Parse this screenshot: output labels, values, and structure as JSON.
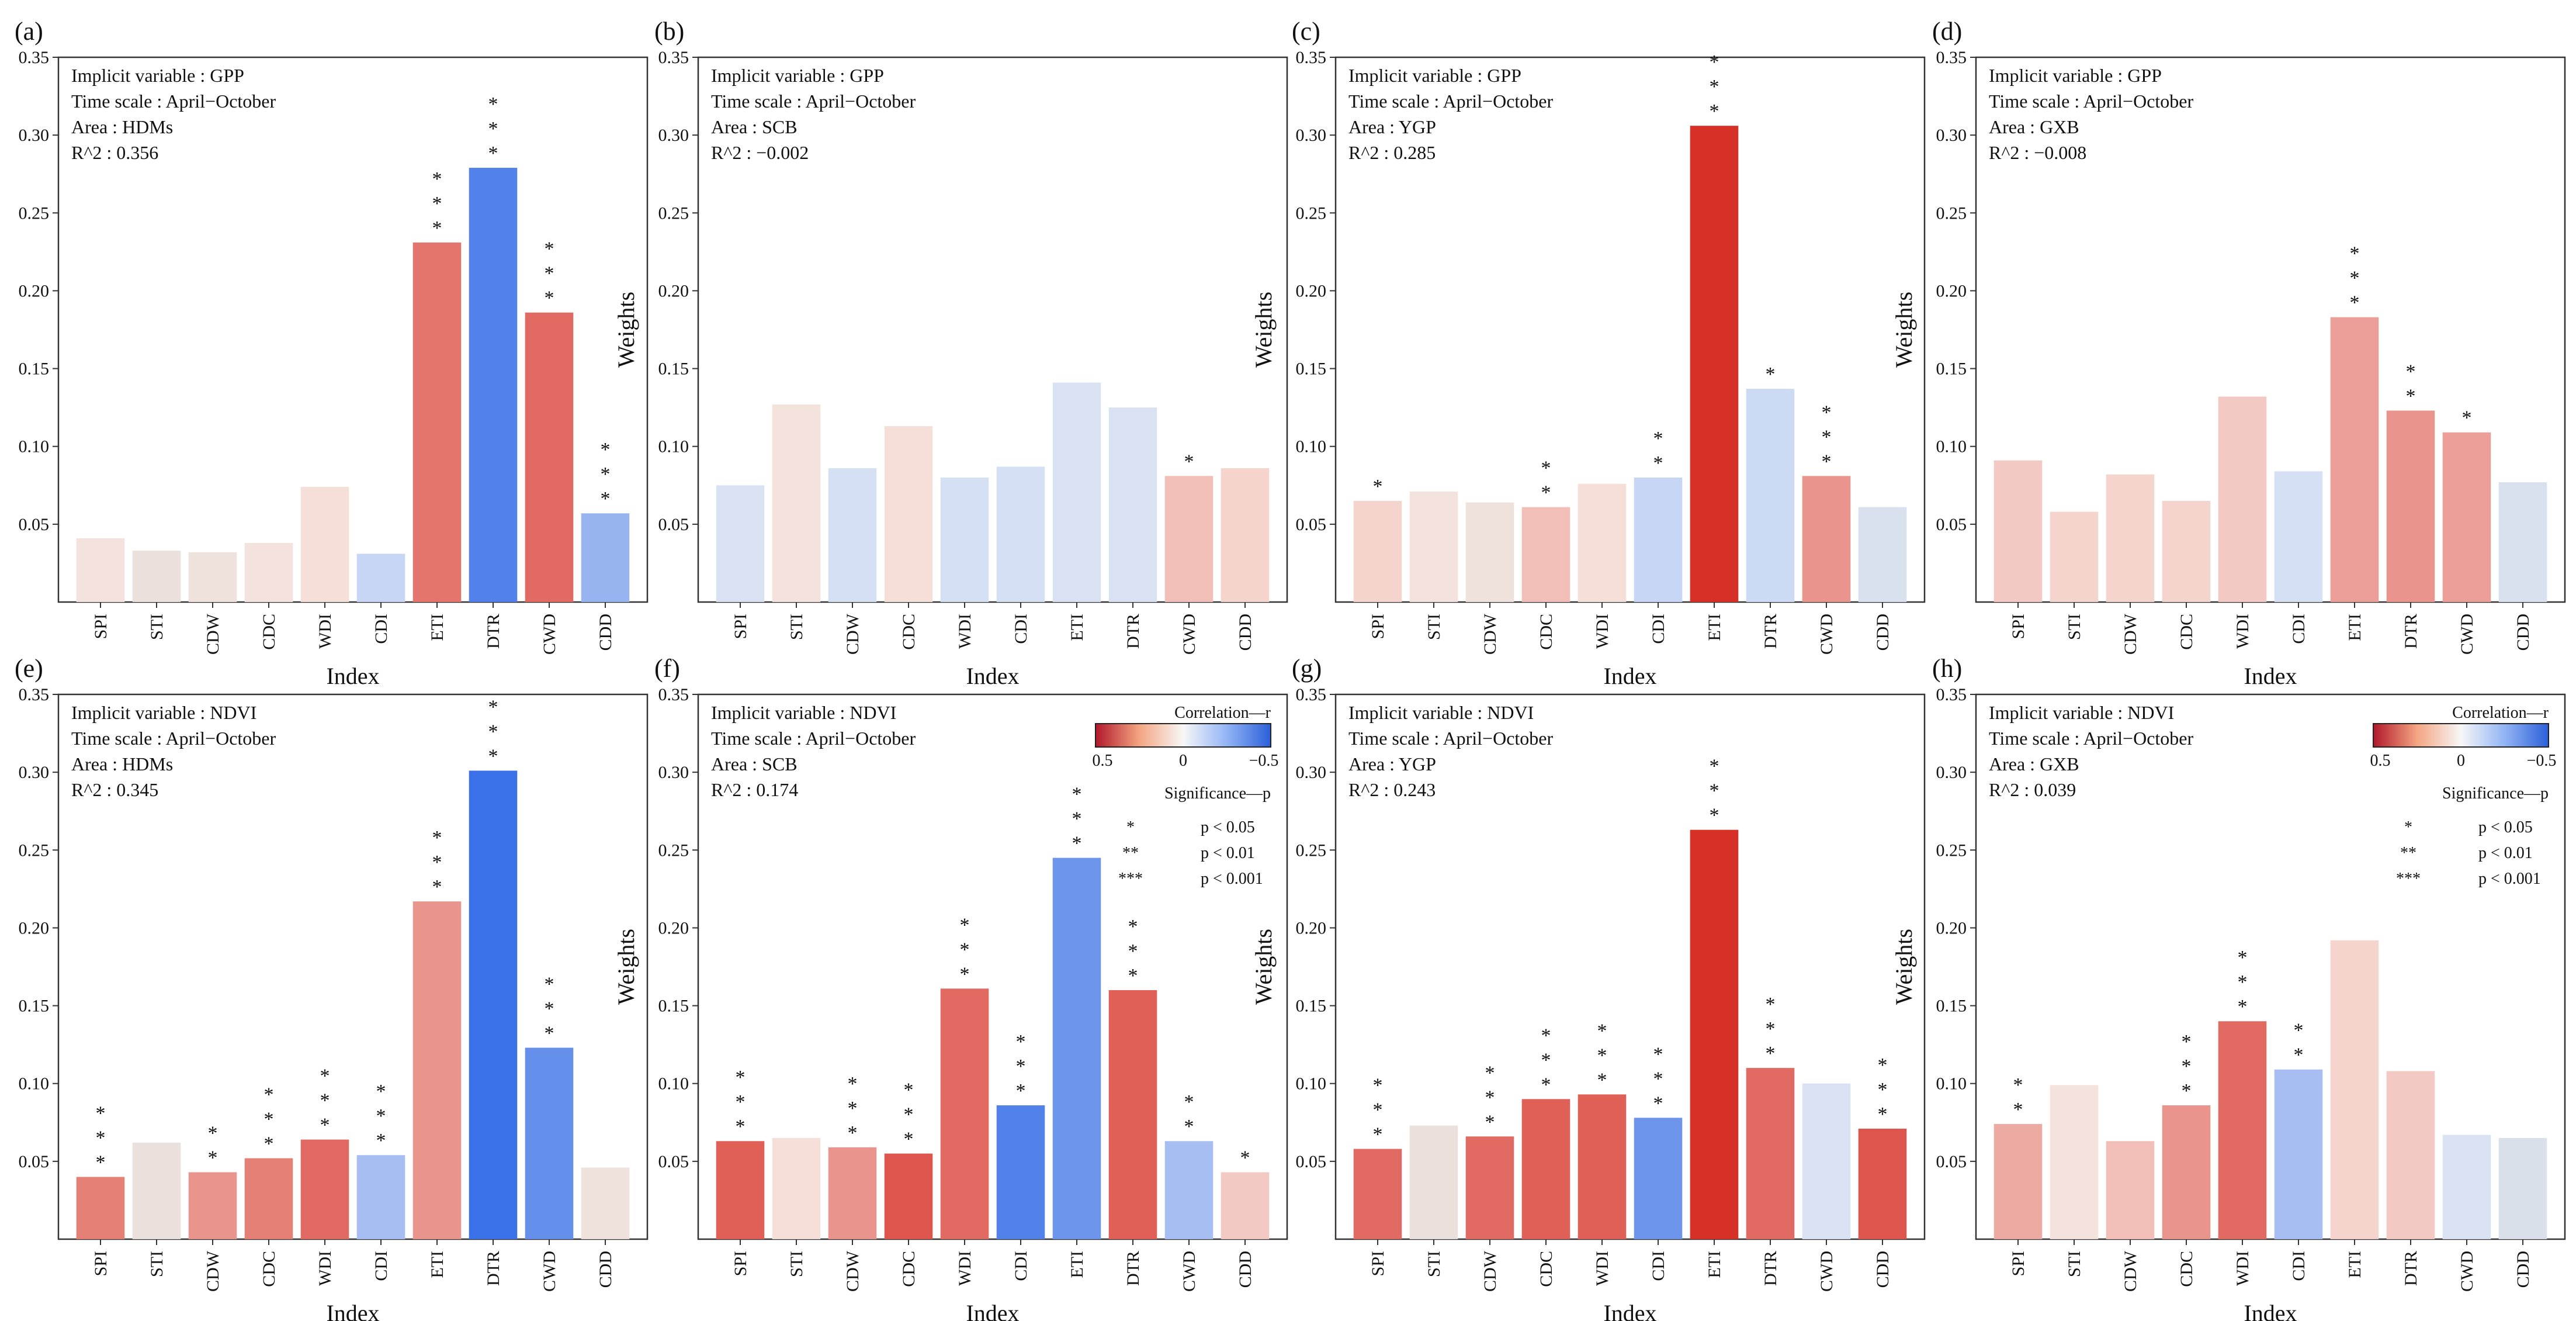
{
  "figure": {
    "ylabel": "Weights",
    "xlabel": "Index",
    "info_keys": {
      "var": "Implicit variable",
      "time": "Time scale",
      "area": "Area",
      "r2": "R^2"
    },
    "legend": {
      "corr_title": "Correlation—r",
      "corr_ticks": [
        "0.5",
        "0",
        "−0.5"
      ],
      "sig_title": "Significance—p",
      "sig_rows": [
        {
          "mark": "*",
          "text": "p < 0.05"
        },
        {
          "mark": "**",
          "text": "p < 0.01"
        },
        {
          "mark": "***",
          "text": "p < 0.001"
        }
      ]
    },
    "colors": {
      "pos_strong": "#d73027",
      "pos_light": "#f7e3dc",
      "neutral": "#dcdcdc",
      "neg_light": "#d9e3f5",
      "neg_strong": "#3a70e8"
    }
  },
  "chart_data": [
    {
      "label": "(a)",
      "type": "bar",
      "var": "GPP",
      "time": "April−October",
      "area": "HDMs",
      "r2": "0.356",
      "ylim": [
        0,
        0.35
      ],
      "yticks": [
        "0.05",
        "0.10",
        "0.15",
        "0.20",
        "0.25",
        "0.30",
        "0.35"
      ],
      "categories": [
        "SPI",
        "STI",
        "CDW",
        "CDC",
        "WDI",
        "CDI",
        "ETI",
        "DTR",
        "CWD",
        "CDD"
      ],
      "values": [
        0.041,
        0.033,
        0.032,
        0.038,
        0.074,
        0.031,
        0.231,
        0.279,
        0.186,
        0.057
      ],
      "r": [
        0.1,
        0.06,
        0.08,
        0.1,
        0.12,
        -0.15,
        0.32,
        -0.4,
        0.34,
        -0.25
      ],
      "sig": [
        "",
        "",
        "",
        "",
        "",
        "",
        "***",
        "***",
        "***",
        "***"
      ],
      "legend": false
    },
    {
      "label": "(b)",
      "type": "bar",
      "var": "GPP",
      "time": "April−October",
      "area": "SCB",
      "r2": "−0.002",
      "ylim": [
        0,
        0.35
      ],
      "yticks": [
        "0.05",
        "0.10",
        "0.15",
        "0.20",
        "0.25",
        "0.30",
        "0.35"
      ],
      "categories": [
        "SPI",
        "STI",
        "CDW",
        "CDC",
        "WDI",
        "CDI",
        "ETI",
        "DTR",
        "CWD",
        "CDD"
      ],
      "values": [
        0.075,
        0.127,
        0.086,
        0.113,
        0.08,
        0.087,
        0.141,
        0.125,
        0.081,
        0.086
      ],
      "r": [
        -0.1,
        0.1,
        -0.12,
        0.12,
        -0.12,
        -0.12,
        -0.1,
        -0.1,
        0.18,
        0.14
      ],
      "sig": [
        "",
        "",
        "",
        "",
        "",
        "",
        "",
        "",
        "*",
        ""
      ],
      "legend": false
    },
    {
      "label": "(c)",
      "type": "bar",
      "var": "GPP",
      "time": "April−October",
      "area": "YGP",
      "r2": "0.285",
      "ylim": [
        0,
        0.35
      ],
      "yticks": [
        "0.05",
        "0.10",
        "0.15",
        "0.20",
        "0.25",
        "0.30",
        "0.35"
      ],
      "categories": [
        "SPI",
        "STI",
        "CDW",
        "CDC",
        "WDI",
        "CDI",
        "ETI",
        "DTR",
        "CWD",
        "CDD"
      ],
      "values": [
        0.065,
        0.071,
        0.064,
        0.061,
        0.076,
        0.08,
        0.306,
        0.137,
        0.081,
        0.061
      ],
      "r": [
        0.14,
        0.1,
        0.08,
        0.18,
        0.12,
        -0.15,
        0.45,
        -0.14,
        0.26,
        -0.08
      ],
      "sig": [
        "*",
        "",
        "",
        "**",
        "",
        "**",
        "***",
        "*",
        "***",
        ""
      ],
      "legend": false
    },
    {
      "label": "(d)",
      "type": "bar",
      "var": "GPP",
      "time": "April−October",
      "area": "GXB",
      "r2": "−0.008",
      "ylim": [
        0,
        0.35
      ],
      "yticks": [
        "0.05",
        "0.10",
        "0.15",
        "0.20",
        "0.25",
        "0.30",
        "0.35"
      ],
      "categories": [
        "SPI",
        "STI",
        "CDW",
        "CDC",
        "WDI",
        "CDI",
        "ETI",
        "DTR",
        "CWD",
        "CDD"
      ],
      "values": [
        0.091,
        0.058,
        0.082,
        0.065,
        0.132,
        0.084,
        0.183,
        0.123,
        0.109,
        0.077
      ],
      "r": [
        0.16,
        0.14,
        0.14,
        0.14,
        0.16,
        -0.12,
        0.24,
        0.26,
        0.24,
        -0.08
      ],
      "sig": [
        "",
        "",
        "",
        "",
        "",
        "",
        "***",
        "**",
        "*",
        ""
      ],
      "legend": false
    },
    {
      "label": "(e)",
      "type": "bar",
      "var": "NDVI",
      "time": "April−October",
      "area": "HDMs",
      "r2": "0.345",
      "ylim": [
        0,
        0.35
      ],
      "yticks": [
        "0.05",
        "0.10",
        "0.15",
        "0.20",
        "0.25",
        "0.30",
        "0.35"
      ],
      "categories": [
        "SPI",
        "STI",
        "CDW",
        "CDC",
        "WDI",
        "CDI",
        "ETI",
        "DTR",
        "CWD",
        "CDD"
      ],
      "values": [
        0.04,
        0.062,
        0.043,
        0.052,
        0.064,
        0.054,
        0.217,
        0.301,
        0.123,
        0.046
      ],
      "r": [
        0.3,
        0.06,
        0.26,
        0.3,
        0.34,
        -0.22,
        0.26,
        -0.45,
        -0.36,
        0.08
      ],
      "sig": [
        "***",
        "",
        "**",
        "***",
        "***",
        "***",
        "***",
        "***",
        "***",
        ""
      ],
      "legend": false
    },
    {
      "label": "(f)",
      "type": "bar",
      "var": "NDVI",
      "time": "April−October",
      "area": "SCB",
      "r2": "0.174",
      "ylim": [
        0,
        0.35
      ],
      "yticks": [
        "0.05",
        "0.10",
        "0.15",
        "0.20",
        "0.25",
        "0.30",
        "0.35"
      ],
      "categories": [
        "SPI",
        "STI",
        "CDW",
        "CDC",
        "WDI",
        "CDI",
        "ETI",
        "DTR",
        "CWD",
        "CDD"
      ],
      "values": [
        0.063,
        0.065,
        0.059,
        0.055,
        0.161,
        0.086,
        0.245,
        0.16,
        0.063,
        0.043
      ],
      "r": [
        0.36,
        0.12,
        0.26,
        0.38,
        0.34,
        -0.4,
        -0.34,
        0.36,
        -0.22,
        0.16
      ],
      "sig": [
        "***",
        "",
        "***",
        "***",
        "***",
        "***",
        "***",
        "***",
        "**",
        "*"
      ],
      "legend": true
    },
    {
      "label": "(g)",
      "type": "bar",
      "var": "NDVI",
      "time": "April−October",
      "area": "YGP",
      "r2": "0.243",
      "ylim": [
        0,
        0.35
      ],
      "yticks": [
        "0.05",
        "0.10",
        "0.15",
        "0.20",
        "0.25",
        "0.30",
        "0.35"
      ],
      "categories": [
        "SPI",
        "STI",
        "CDW",
        "CDC",
        "WDI",
        "CDI",
        "ETI",
        "DTR",
        "CWD",
        "CDD"
      ],
      "values": [
        0.058,
        0.073,
        0.066,
        0.09,
        0.093,
        0.078,
        0.263,
        0.11,
        0.1,
        0.071
      ],
      "r": [
        0.34,
        0.06,
        0.34,
        0.36,
        0.36,
        -0.34,
        0.45,
        0.34,
        -0.1,
        0.38
      ],
      "sig": [
        "***",
        "",
        "***",
        "***",
        "***",
        "***",
        "***",
        "***",
        "",
        "***"
      ],
      "legend": false
    },
    {
      "label": "(h)",
      "type": "bar",
      "var": "NDVI",
      "time": "April−October",
      "area": "GXB",
      "r2": "0.039",
      "ylim": [
        0,
        0.35
      ],
      "yticks": [
        "0.05",
        "0.10",
        "0.15",
        "0.20",
        "0.25",
        "0.30",
        "0.35"
      ],
      "categories": [
        "SPI",
        "STI",
        "CDW",
        "CDC",
        "WDI",
        "CDI",
        "ETI",
        "DTR",
        "CWD",
        "CDD"
      ],
      "values": [
        0.074,
        0.099,
        0.063,
        0.086,
        0.14,
        0.109,
        0.192,
        0.108,
        0.067,
        0.065
      ],
      "r": [
        0.22,
        0.1,
        0.18,
        0.26,
        0.34,
        -0.22,
        0.14,
        0.16,
        -0.1,
        -0.06
      ],
      "sig": [
        "**",
        "",
        "",
        "***",
        "***",
        "**",
        "",
        "",
        "",
        ""
      ],
      "legend": true
    }
  ]
}
